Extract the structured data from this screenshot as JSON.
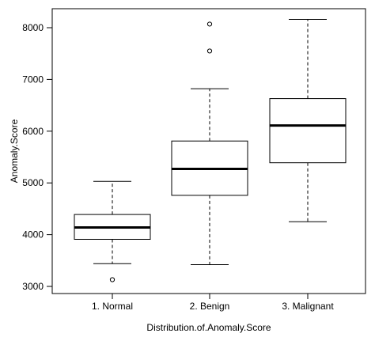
{
  "chart_data": {
    "type": "boxplot",
    "title": "",
    "xlabel": "Distribution.of.Anomaly.Score",
    "ylabel": "Anomaly.Score",
    "ylim": [
      2900,
      8400
    ],
    "yticks": [
      3000,
      4000,
      5000,
      6000,
      7000,
      8000
    ],
    "grid": false,
    "legend": "none",
    "categories": [
      "1. Normal",
      "2. Benign",
      "3. Malignant"
    ],
    "boxes": [
      {
        "category": "1. Normal",
        "whisker_low": 3440,
        "q1": 3910,
        "median": 4140,
        "q3": 4390,
        "whisker_high": 5030,
        "outliers": [
          3130
        ]
      },
      {
        "category": "2. Benign",
        "whisker_low": 3420,
        "q1": 4760,
        "median": 5270,
        "q3": 5810,
        "whisker_high": 6820,
        "outliers": [
          7550,
          8070
        ]
      },
      {
        "category": "3. Malignant",
        "whisker_low": 4250,
        "q1": 5390,
        "median": 6110,
        "q3": 6630,
        "whisker_high": 8160,
        "outliers": []
      }
    ]
  }
}
